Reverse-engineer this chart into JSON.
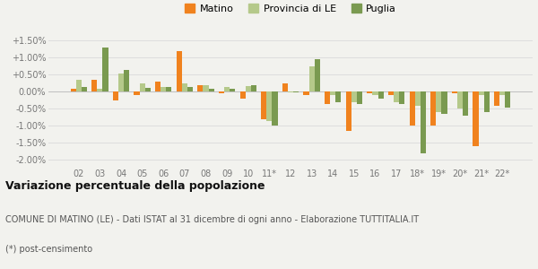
{
  "years": [
    "02",
    "03",
    "04",
    "05",
    "06",
    "07",
    "08",
    "09",
    "10",
    "11*",
    "12",
    "13",
    "14",
    "15",
    "16",
    "17",
    "18*",
    "19*",
    "20*",
    "21*",
    "22*"
  ],
  "matino": [
    0.1,
    0.35,
    -0.25,
    -0.1,
    0.3,
    1.2,
    0.2,
    -0.05,
    -0.2,
    -0.8,
    0.25,
    -0.1,
    -0.35,
    -1.15,
    -0.05,
    -0.1,
    -1.0,
    -1.0,
    -0.05,
    -1.6,
    -0.4
  ],
  "provincia_le": [
    0.35,
    0.1,
    0.55,
    0.25,
    0.15,
    0.25,
    0.2,
    0.15,
    0.18,
    -0.85,
    -0.02,
    0.75,
    -0.1,
    -0.3,
    -0.1,
    -0.3,
    -0.4,
    -0.6,
    -0.5,
    -0.1,
    -0.1
  ],
  "puglia": [
    0.15,
    1.3,
    0.65,
    0.13,
    0.15,
    0.15,
    0.1,
    0.1,
    0.2,
    -1.0,
    -0.02,
    0.97,
    -0.3,
    -0.35,
    -0.2,
    -0.35,
    -1.8,
    -0.65,
    -0.7,
    -0.6,
    -0.45
  ],
  "matino_color": "#f0821e",
  "provincia_le_color": "#b5c98a",
  "puglia_color": "#7a9a50",
  "bg_color": "#f2f2ee",
  "grid_color": "#dddddd",
  "title": "Variazione percentuale della popolazione",
  "subtitle": "COMUNE DI MATINO (LE) - Dati ISTAT al 31 dicembre di ogni anno - Elaborazione TUTTITALIA.IT",
  "footnote": "(*) post-censimento",
  "ylim": [
    -2.2,
    1.75
  ],
  "yticks": [
    -2.0,
    -1.5,
    -1.0,
    -0.5,
    0.0,
    0.5,
    1.0,
    1.5
  ],
  "ytick_labels": [
    "-2.00%",
    "-1.50%",
    "-1.00%",
    "-0.50%",
    "0.00%",
    "+0.50%",
    "+1.00%",
    "+1.50%"
  ]
}
